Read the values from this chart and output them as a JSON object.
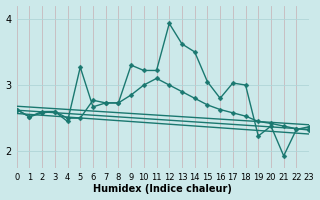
{
  "xlabel": "Humidex (Indice chaleur)",
  "xlim": [
    0,
    23
  ],
  "ylim": [
    1.75,
    4.2
  ],
  "yticks": [
    2,
    3,
    4
  ],
  "xticks": [
    0,
    1,
    2,
    3,
    4,
    5,
    6,
    7,
    8,
    9,
    10,
    11,
    12,
    13,
    14,
    15,
    16,
    17,
    18,
    19,
    20,
    21,
    22,
    23
  ],
  "bg_color": "#cce9ea",
  "grid_color": "#b0d5d7",
  "line_color": "#1a7870",
  "lines": [
    {
      "x": [
        0,
        1,
        2,
        3,
        4,
        5,
        6,
        7,
        8,
        9,
        10,
        11,
        12,
        13,
        14,
        15,
        16,
        17,
        18,
        19,
        20,
        21,
        22,
        23
      ],
      "y": [
        2.63,
        2.52,
        2.6,
        2.6,
        2.45,
        3.27,
        2.67,
        2.73,
        2.73,
        3.3,
        3.22,
        3.22,
        3.93,
        3.62,
        3.5,
        3.05,
        2.8,
        3.03,
        3.0,
        2.23,
        2.38,
        1.93,
        2.33,
        2.37
      ],
      "has_markers": true,
      "markersize": 2.5,
      "linewidth": 1.0
    },
    {
      "x": [
        0,
        1,
        2,
        3,
        4,
        5,
        6,
        7,
        8,
        9,
        10,
        11,
        12,
        13,
        14,
        15,
        16,
        17,
        18,
        19,
        20,
        21,
        22,
        23
      ],
      "y": [
        2.63,
        2.52,
        2.58,
        2.6,
        2.5,
        2.5,
        2.77,
        2.73,
        2.73,
        2.85,
        3.0,
        3.1,
        3.0,
        2.9,
        2.8,
        2.7,
        2.63,
        2.58,
        2.53,
        2.45,
        2.42,
        2.38,
        2.34,
        2.32
      ],
      "has_markers": true,
      "markersize": 2.5,
      "linewidth": 1.0
    },
    {
      "x": [
        0,
        23
      ],
      "y": [
        2.68,
        2.4
      ],
      "has_markers": false,
      "markersize": 0,
      "linewidth": 1.0
    },
    {
      "x": [
        0,
        23
      ],
      "y": [
        2.62,
        2.33
      ],
      "has_markers": false,
      "markersize": 0,
      "linewidth": 1.0
    },
    {
      "x": [
        0,
        23
      ],
      "y": [
        2.57,
        2.26
      ],
      "has_markers": false,
      "markersize": 0,
      "linewidth": 1.0
    }
  ],
  "tick_labelsize": 6,
  "xlabel_fontsize": 7,
  "fig_width": 3.2,
  "fig_height": 2.0,
  "dpi": 100
}
